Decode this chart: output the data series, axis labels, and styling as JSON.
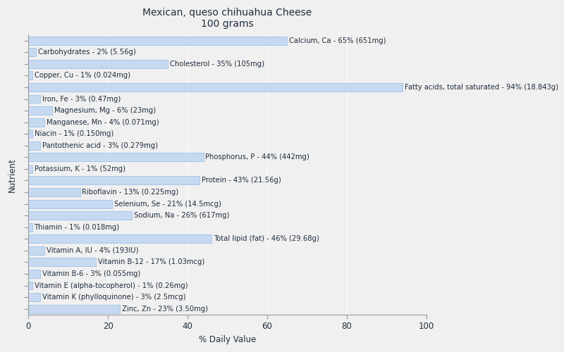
{
  "title_line1": "Mexican, queso chihuahua Cheese",
  "title_line2": "100 grams",
  "xlabel": "% Daily Value",
  "ylabel": "Nutrient",
  "xlim": [
    0,
    100
  ],
  "bar_color": "#c6d9f1",
  "bar_edge_color": "#9dc3e6",
  "background_color": "#f0f0f0",
  "nutrients": [
    {
      "label": "Calcium, Ca - 65% (651mg)",
      "value": 65
    },
    {
      "label": "Carbohydrates - 2% (5.56g)",
      "value": 2
    },
    {
      "label": "Cholesterol - 35% (105mg)",
      "value": 35
    },
    {
      "label": "Copper, Cu - 1% (0.024mg)",
      "value": 1
    },
    {
      "label": "Fatty acids, total saturated - 94% (18.843g)",
      "value": 94
    },
    {
      "label": "Iron, Fe - 3% (0.47mg)",
      "value": 3
    },
    {
      "label": "Magnesium, Mg - 6% (23mg)",
      "value": 6
    },
    {
      "label": "Manganese, Mn - 4% (0.071mg)",
      "value": 4
    },
    {
      "label": "Niacin - 1% (0.150mg)",
      "value": 1
    },
    {
      "label": "Pantothenic acid - 3% (0.279mg)",
      "value": 3
    },
    {
      "label": "Phosphorus, P - 44% (442mg)",
      "value": 44
    },
    {
      "label": "Potassium, K - 1% (52mg)",
      "value": 1
    },
    {
      "label": "Protein - 43% (21.56g)",
      "value": 43
    },
    {
      "label": "Riboflavin - 13% (0.225mg)",
      "value": 13
    },
    {
      "label": "Selenium, Se - 21% (14.5mcg)",
      "value": 21
    },
    {
      "label": "Sodium, Na - 26% (617mg)",
      "value": 26
    },
    {
      "label": "Thiamin - 1% (0.018mg)",
      "value": 1
    },
    {
      "label": "Total lipid (fat) - 46% (29.68g)",
      "value": 46
    },
    {
      "label": "Vitamin A, IU - 4% (193IU)",
      "value": 4
    },
    {
      "label": "Vitamin B-12 - 17% (1.03mcg)",
      "value": 17
    },
    {
      "label": "Vitamin B-6 - 3% (0.055mg)",
      "value": 3
    },
    {
      "label": "Vitamin E (alpha-tocopherol) - 1% (0.26mg)",
      "value": 1
    },
    {
      "label": "Vitamin K (phylloquinone) - 3% (2.5mcg)",
      "value": 3
    },
    {
      "label": "Zinc, Zn - 23% (3.50mg)",
      "value": 23
    }
  ],
  "title_color": "#1f2d3d",
  "label_color": "#1f2d3d",
  "axis_label_color": "#1f2d3d",
  "tick_color": "#1f2d3d",
  "grid_color": "#ffffff",
  "title_fontsize": 10,
  "label_fontsize": 7.2,
  "tick_fontsize": 8.5
}
